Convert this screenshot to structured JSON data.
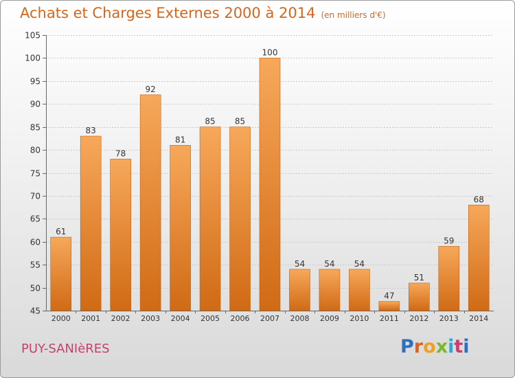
{
  "header": {
    "title": "Achats et Charges Externes 2000 à 2014",
    "subtitle": "(en milliers d'€)"
  },
  "footer": {
    "town": "PUY-SANIèRES",
    "logo": [
      "P",
      "r",
      "o",
      "x",
      "i",
      "t",
      "i"
    ]
  },
  "colors": {
    "title": "#d5661c",
    "bar_top": "#f7a85a",
    "bar_bottom": "#d06a15",
    "town": "#c63f6f"
  },
  "chart_data": {
    "type": "bar",
    "title": "Achats et Charges Externes 2000 à 2014",
    "subtitle": "(en milliers d'€)",
    "categories": [
      "2000",
      "2001",
      "2002",
      "2003",
      "2004",
      "2005",
      "2006",
      "2007",
      "2008",
      "2009",
      "2010",
      "2011",
      "2012",
      "2013",
      "2014"
    ],
    "values": [
      61,
      83,
      78,
      92,
      81,
      85,
      85,
      100,
      54,
      54,
      54,
      47,
      51,
      59,
      68
    ],
    "ylim": [
      45,
      105
    ],
    "yticks": [
      45,
      50,
      55,
      60,
      65,
      70,
      75,
      80,
      85,
      90,
      95,
      100,
      105
    ],
    "grid": true,
    "data_labels": true
  }
}
